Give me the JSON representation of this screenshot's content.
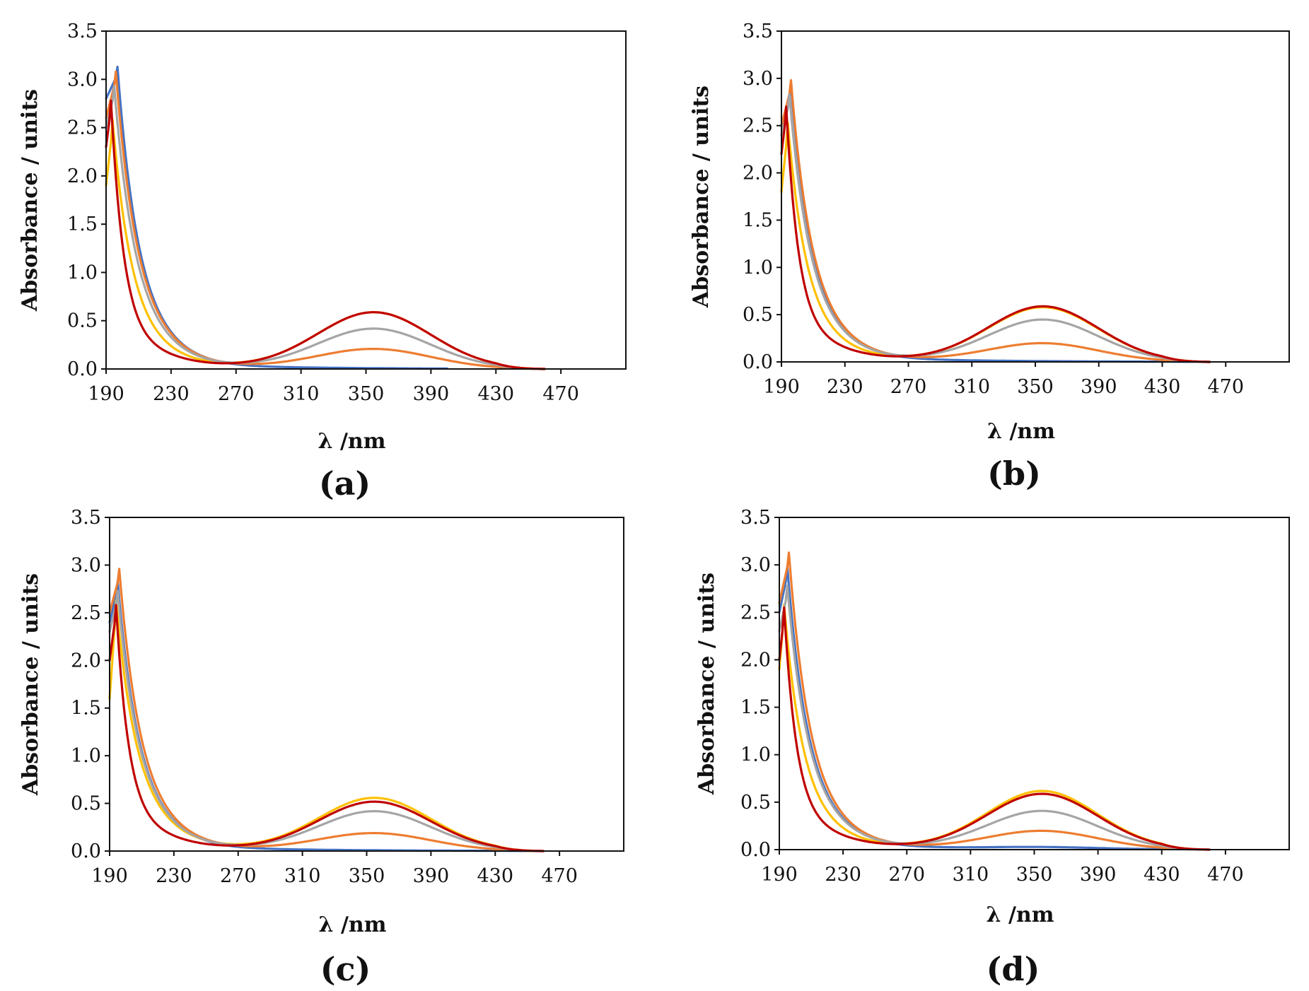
{
  "figure": {
    "panels": [
      "(a)",
      "(b)",
      "(c)",
      "(d)"
    ]
  },
  "series_colors": {
    "blue": "#4472C4",
    "yellow": "#FFC000",
    "orange": "#ED7D31",
    "gray": "#A5A5A5",
    "red": "#C00000"
  },
  "chart_data": [
    {
      "type": "line",
      "panel_label": "(a)",
      "title": "",
      "xlabel": "λ /nm",
      "ylabel": "Absorbance / units",
      "xlim": [
        190,
        510
      ],
      "ylim": [
        0.0,
        3.5
      ],
      "x_ticks": [
        190,
        230,
        270,
        310,
        350,
        390,
        430,
        470
      ],
      "y_ticks": [
        0.0,
        0.5,
        1.0,
        1.5,
        2.0,
        2.5,
        3.0,
        3.5
      ],
      "y_tick_labels": [
        "0.0",
        "0.5",
        "1.0",
        "1.5",
        "2.0",
        "2.5",
        "3.0",
        "3.5"
      ],
      "grid": false,
      "series": [
        {
          "name": "blue",
          "color": "#4472C4",
          "uv_peak_x": 197,
          "uv_peak": 3.05,
          "start": 2.8,
          "decay": 13,
          "shoulder_amp": 0.2,
          "shoulder_w": 30,
          "visible_peak_x": 355,
          "visible_peak": 0.0,
          "visible_width": 40,
          "end_x": 400
        },
        {
          "name": "yellow",
          "color": "#FFC000",
          "uv_peak_x": 194,
          "uv_peak": 2.5,
          "start": 1.9,
          "decay": 12,
          "shoulder_amp": 0.15,
          "shoulder_w": 30,
          "visible_peak_x": 355,
          "visible_peak": 0.58,
          "visible_width": 40,
          "end_x": 460
        },
        {
          "name": "orange",
          "color": "#ED7D31",
          "uv_peak_x": 196,
          "uv_peak": 3.0,
          "start": 2.6,
          "decay": 13,
          "shoulder_amp": 0.22,
          "shoulder_w": 30,
          "visible_peak_x": 355,
          "visible_peak": 0.2,
          "visible_width": 40,
          "end_x": 460
        },
        {
          "name": "gray",
          "color": "#A5A5A5",
          "uv_peak_x": 195,
          "uv_peak": 2.85,
          "start": 2.5,
          "decay": 13,
          "shoulder_amp": 0.2,
          "shoulder_w": 30,
          "visible_peak_x": 355,
          "visible_peak": 0.41,
          "visible_width": 40,
          "end_x": 460
        },
        {
          "name": "red",
          "color": "#C00000",
          "uv_peak_x": 193,
          "uv_peak": 2.7,
          "start": 2.3,
          "decay": 8,
          "shoulder_amp": 0.18,
          "shoulder_w": 30,
          "visible_peak_x": 355,
          "visible_peak": 0.58,
          "visible_width": 40,
          "end_x": 460
        }
      ]
    },
    {
      "type": "line",
      "panel_label": "(b)",
      "title": "",
      "xlabel": "λ /nm",
      "ylabel": "Absorbance / units",
      "xlim": [
        190,
        510
      ],
      "ylim": [
        0.0,
        3.5
      ],
      "x_ticks": [
        190,
        230,
        270,
        310,
        350,
        390,
        430,
        470
      ],
      "y_ticks": [
        0.0,
        0.5,
        1.0,
        1.5,
        2.0,
        2.5,
        3.0,
        3.5
      ],
      "y_tick_labels": [
        "0.0",
        "0.5",
        "1.0",
        "1.5",
        "2.0",
        "2.5",
        "3.0",
        "3.5"
      ],
      "grid": false,
      "series": [
        {
          "name": "blue",
          "color": "#4472C4",
          "uv_peak_x": 196,
          "uv_peak": 2.85,
          "start": 2.5,
          "decay": 13,
          "shoulder_amp": 0.2,
          "shoulder_w": 30,
          "visible_peak_x": 355,
          "visible_peak": 0.0,
          "visible_width": 40,
          "end_x": 460
        },
        {
          "name": "yellow",
          "color": "#FFC000",
          "uv_peak_x": 194,
          "uv_peak": 2.45,
          "start": 1.8,
          "decay": 12,
          "shoulder_amp": 0.15,
          "shoulder_w": 30,
          "visible_peak_x": 355,
          "visible_peak": 0.57,
          "visible_width": 40,
          "end_x": 460
        },
        {
          "name": "orange",
          "color": "#ED7D31",
          "uv_peak_x": 196,
          "uv_peak": 2.9,
          "start": 2.5,
          "decay": 13,
          "shoulder_amp": 0.22,
          "shoulder_w": 30,
          "visible_peak_x": 355,
          "visible_peak": 0.19,
          "visible_width": 40,
          "end_x": 460
        },
        {
          "name": "gray",
          "color": "#A5A5A5",
          "uv_peak_x": 195,
          "uv_peak": 2.75,
          "start": 2.4,
          "decay": 13,
          "shoulder_amp": 0.2,
          "shoulder_w": 30,
          "visible_peak_x": 355,
          "visible_peak": 0.44,
          "visible_width": 40,
          "end_x": 460
        },
        {
          "name": "red",
          "color": "#C00000",
          "uv_peak_x": 193,
          "uv_peak": 2.62,
          "start": 2.2,
          "decay": 8,
          "shoulder_amp": 0.18,
          "shoulder_w": 30,
          "visible_peak_x": 355,
          "visible_peak": 0.58,
          "visible_width": 40,
          "end_x": 460
        }
      ]
    },
    {
      "type": "line",
      "panel_label": "(c)",
      "title": "",
      "xlabel": "λ /nm",
      "ylabel": "Absorbance / units",
      "xlim": [
        190,
        510
      ],
      "ylim": [
        0.0,
        3.5
      ],
      "x_ticks": [
        190,
        230,
        270,
        310,
        350,
        390,
        430,
        470
      ],
      "y_ticks": [
        0.0,
        0.5,
        1.0,
        1.5,
        2.0,
        2.5,
        3.0,
        3.5
      ],
      "y_tick_labels": [
        "0.0",
        "0.5",
        "1.0",
        "1.5",
        "2.0",
        "2.5",
        "3.0",
        "3.5"
      ],
      "grid": false,
      "series": [
        {
          "name": "blue",
          "color": "#4472C4",
          "uv_peak_x": 195,
          "uv_peak": 2.75,
          "start": 2.4,
          "decay": 13,
          "shoulder_amp": 0.2,
          "shoulder_w": 30,
          "visible_peak_x": 355,
          "visible_peak": 0.0,
          "visible_width": 40,
          "end_x": 460
        },
        {
          "name": "yellow",
          "color": "#FFC000",
          "uv_peak_x": 194,
          "uv_peak": 2.55,
          "start": 1.6,
          "decay": 13,
          "shoulder_amp": 0.18,
          "shoulder_w": 32,
          "visible_peak_x": 355,
          "visible_peak": 0.55,
          "visible_width": 40,
          "end_x": 460
        },
        {
          "name": "orange",
          "color": "#ED7D31",
          "uv_peak_x": 196,
          "uv_peak": 2.88,
          "start": 2.5,
          "decay": 13,
          "shoulder_amp": 0.22,
          "shoulder_w": 30,
          "visible_peak_x": 355,
          "visible_peak": 0.18,
          "visible_width": 40,
          "end_x": 460
        },
        {
          "name": "gray",
          "color": "#A5A5A5",
          "uv_peak_x": 195,
          "uv_peak": 2.65,
          "start": 2.3,
          "decay": 13,
          "shoulder_amp": 0.2,
          "shoulder_w": 30,
          "visible_peak_x": 355,
          "visible_peak": 0.41,
          "visible_width": 40,
          "end_x": 460
        },
        {
          "name": "red",
          "color": "#C00000",
          "uv_peak_x": 194,
          "uv_peak": 2.5,
          "start": 2.0,
          "decay": 8,
          "shoulder_amp": 0.18,
          "shoulder_w": 30,
          "visible_peak_x": 355,
          "visible_peak": 0.51,
          "visible_width": 40,
          "end_x": 460
        }
      ]
    },
    {
      "type": "line",
      "panel_label": "(d)",
      "title": "",
      "xlabel": "λ /nm",
      "ylabel": "Absorbance / units",
      "xlim": [
        190,
        510
      ],
      "ylim": [
        0.0,
        3.5
      ],
      "x_ticks": [
        190,
        230,
        270,
        310,
        350,
        390,
        430,
        470
      ],
      "y_ticks": [
        0.0,
        0.5,
        1.0,
        1.5,
        2.0,
        2.5,
        3.0,
        3.5
      ],
      "y_tick_labels": [
        "0.0",
        "0.5",
        "1.0",
        "1.5",
        "2.0",
        "2.5",
        "3.0",
        "3.5"
      ],
      "grid": false,
      "series": [
        {
          "name": "blue",
          "color": "#4472C4",
          "uv_peak_x": 195,
          "uv_peak": 2.9,
          "start": 2.5,
          "decay": 13,
          "shoulder_amp": 0.2,
          "shoulder_w": 30,
          "visible_peak_x": 355,
          "visible_peak": 0.02,
          "visible_width": 40,
          "end_x": 430
        },
        {
          "name": "yellow",
          "color": "#FFC000",
          "uv_peak_x": 193,
          "uv_peak": 2.5,
          "start": 1.9,
          "decay": 12,
          "shoulder_amp": 0.16,
          "shoulder_w": 30,
          "visible_peak_x": 355,
          "visible_peak": 0.61,
          "visible_width": 40,
          "end_x": 460
        },
        {
          "name": "orange",
          "color": "#ED7D31",
          "uv_peak_x": 196,
          "uv_peak": 3.05,
          "start": 2.6,
          "decay": 13,
          "shoulder_amp": 0.22,
          "shoulder_w": 30,
          "visible_peak_x": 355,
          "visible_peak": 0.19,
          "visible_width": 40,
          "end_x": 460
        },
        {
          "name": "gray",
          "color": "#A5A5A5",
          "uv_peak_x": 195,
          "uv_peak": 2.7,
          "start": 2.3,
          "decay": 13,
          "shoulder_amp": 0.2,
          "shoulder_w": 30,
          "visible_peak_x": 355,
          "visible_peak": 0.4,
          "visible_width": 40,
          "end_x": 460
        },
        {
          "name": "red",
          "color": "#C00000",
          "uv_peak_x": 193,
          "uv_peak": 2.47,
          "start": 2.0,
          "decay": 8,
          "shoulder_amp": 0.18,
          "shoulder_w": 30,
          "visible_peak_x": 355,
          "visible_peak": 0.58,
          "visible_width": 40,
          "end_x": 460
        }
      ]
    }
  ]
}
